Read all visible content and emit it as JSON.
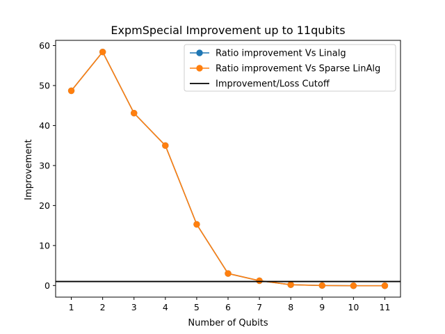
{
  "chart_data": {
    "type": "line",
    "title": "ExpmSpecial Improvement up to 11qubits",
    "xlabel": "Number of Qubits",
    "ylabel": "Improvement",
    "x": [
      1,
      2,
      3,
      4,
      5,
      6,
      7,
      8,
      9,
      10,
      11
    ],
    "xticks": [
      "1",
      "2",
      "3",
      "4",
      "5",
      "6",
      "7",
      "8",
      "9",
      "10",
      "11"
    ],
    "yticks": [
      "0",
      "10",
      "20",
      "30",
      "40",
      "50",
      "60"
    ],
    "xlim": [
      0.5,
      11.5
    ],
    "ylim": [
      -2.9,
      61.3
    ],
    "grid": false,
    "legend_position": "top-right",
    "series": [
      {
        "name": "Ratio improvement Vs Linalg",
        "color": "#1f77b4",
        "marker": "circle",
        "values": [
          48.7,
          58.4,
          43.1,
          35.0,
          15.3,
          3.0,
          1.2,
          0.2,
          0.0,
          -0.05,
          -0.05
        ]
      },
      {
        "name": "Ratio improvement Vs Sparse LinAlg",
        "color": "#ff7f0e",
        "marker": "circle",
        "values": [
          48.7,
          58.4,
          43.1,
          35.0,
          15.3,
          3.0,
          1.2,
          0.2,
          0.0,
          -0.05,
          -0.05
        ]
      }
    ],
    "hline": {
      "name": "Improvement/Loss Cutoff",
      "y": 1,
      "color": "#000000"
    }
  }
}
